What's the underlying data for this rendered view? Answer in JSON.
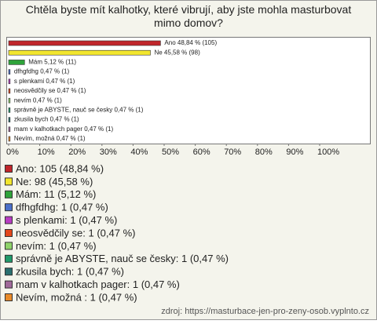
{
  "chart_data": {
    "type": "bar",
    "orientation": "horizontal",
    "title": "Chtěla byste mít kalhotky, které vibrují, aby jste mohla masturbovat mimo domov?",
    "values": [
      48.84,
      45.58,
      5.12,
      0.47,
      0.47,
      0.47,
      0.47,
      0.47,
      0.47,
      0.47,
      0.47
    ],
    "value_labels": [
      "Ano 48,84 % (105)",
      "Ne 45,58 % (98)",
      "Mám 5,12 % (11)",
      "dfhgfdhg 0,47 % (1)",
      "s plenkami 0,47 % (1)",
      "neosvědčily se 0,47 % (1)",
      "nevím 0,47 % (1)",
      "správně je ABYSTE, nauč se česky 0,47 % (1)",
      "zkusila bych 0,47 % (1)",
      "mam v kalhotkach pager 0,47 % (1)",
      "Nevím, možná  0,47 % (1)"
    ],
    "legend_labels": [
      "Ano: 105 (48,84 %)",
      "Ne: 98 (45,58 %)",
      "Mám: 11 (5,12 %)",
      "dfhgfdhg: 1 (0,47 %)",
      "s plenkami: 1 (0,47 %)",
      "neosvědčily se: 1 (0,47 %)",
      "nevím: 1 (0,47 %)",
      "správně je ABYSTE, nauč se česky: 1 (0,47 %)",
      "zkusila bych: 1 (0,47 %)",
      "mam v kalhotkach pager: 1 (0,47 %)",
      "Nevím, možná : 1 (0,47 %)"
    ],
    "colors": [
      "#c0262b",
      "#f2e62e",
      "#2fa33a",
      "#4a6fc9",
      "#b83dc2",
      "#e2471c",
      "#8ed36a",
      "#1f9a6a",
      "#2a6f6f",
      "#a06a9a",
      "#e88a2a"
    ],
    "xlim": [
      0,
      100
    ],
    "xticks": [
      {
        "value": 0,
        "label": "0%"
      },
      {
        "value": 10,
        "label": "10%"
      },
      {
        "value": 20,
        "label": "20%"
      },
      {
        "value": 30,
        "label": "30%"
      },
      {
        "value": 40,
        "label": "40%"
      },
      {
        "value": 50,
        "label": "50%"
      },
      {
        "value": 60,
        "label": "60%"
      },
      {
        "value": 70,
        "label": "70%"
      },
      {
        "value": 80,
        "label": "80%"
      },
      {
        "value": 90,
        "label": "90%"
      },
      {
        "value": 100,
        "label": "100%"
      }
    ],
    "source": "zdroj: https://masturbace-jen-pro-zeny-osob.vyplnto.cz"
  }
}
